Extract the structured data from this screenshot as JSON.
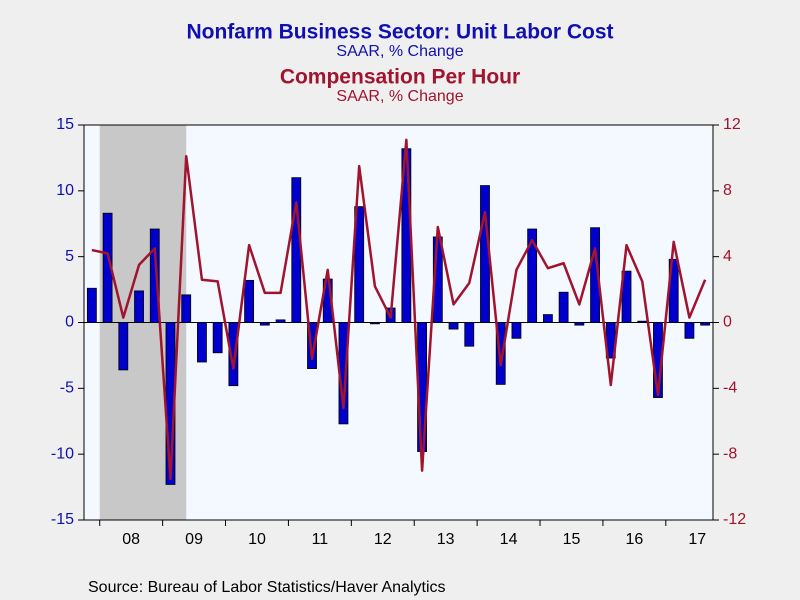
{
  "chart_data": {
    "type": "bar",
    "series": [
      {
        "name": "Nonfarm Business Sector: Unit Labor Cost",
        "unit": "SAAR, % Change",
        "type": "bar",
        "color": "#0000cc",
        "values": [
          2.6,
          8.3,
          -3.6,
          2.4,
          7.1,
          -12.3,
          2.1,
          -3.0,
          -2.3,
          -4.8,
          3.2,
          -0.2,
          0.2,
          11.0,
          -3.5,
          3.3,
          -7.7,
          8.8,
          -0.1,
          1.1,
          13.2,
          -9.8,
          6.5,
          -0.5,
          -1.8,
          10.4,
          -4.7,
          -1.2,
          7.1,
          0.6,
          2.3,
          -0.2,
          7.2,
          -2.7,
          3.9,
          0.1,
          -5.7,
          4.8,
          -1.2,
          -0.2
        ]
      },
      {
        "name": "Compensation Per Hour",
        "unit": "SAAR, % Change",
        "type": "line",
        "axis": "y2",
        "color": "#a0142e",
        "values": [
          4.4,
          4.2,
          0.3,
          3.5,
          4.5,
          -9.5,
          10.1,
          2.6,
          2.5,
          -2.8,
          4.7,
          1.8,
          1.8,
          7.3,
          -2.2,
          3.2,
          -5.2,
          9.5,
          2.2,
          0.3,
          11.1,
          -9.0,
          5.8,
          1.1,
          2.4,
          6.7,
          -2.6,
          3.2,
          5.0,
          3.3,
          3.6,
          1.1,
          4.5,
          -3.8,
          4.7,
          2.5,
          -4.4,
          4.9,
          0.3,
          2.6
        ]
      }
    ],
    "categories": [
      null,
      null,
      "08",
      null,
      null,
      null,
      "09",
      null,
      null,
      null,
      "10",
      null,
      null,
      null,
      "11",
      null,
      null,
      null,
      "12",
      null,
      null,
      null,
      "13",
      null,
      null,
      null,
      "14",
      null,
      null,
      null,
      "15",
      null,
      null,
      null,
      "16",
      null,
      null,
      null,
      "17",
      null
    ],
    "ylim": [
      -15,
      15
    ],
    "yticks": [
      -15,
      -10,
      -5,
      0,
      5,
      10,
      15
    ],
    "y2lim": [
      -12,
      12
    ],
    "y2ticks": [
      -12,
      -8,
      -4,
      0,
      4,
      8,
      12
    ],
    "recession": [
      1,
      6
    ],
    "source": "Source:  Bureau of Labor Statistics/Haver Analytics"
  }
}
